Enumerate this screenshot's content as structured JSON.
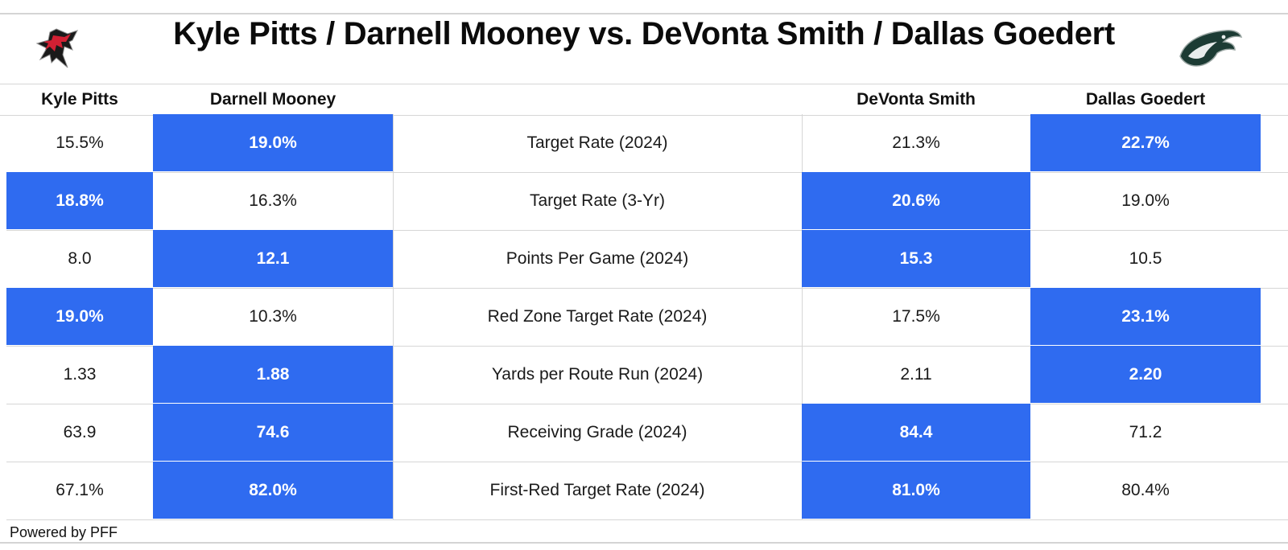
{
  "title": "Kyle Pitts / Darnell Mooney vs. DeVonta Smith / Dallas Goedert",
  "logos": {
    "left": "falcons-logo",
    "right": "eagles-logo"
  },
  "colors": {
    "highlight": "#2f6bf0",
    "highlight_text": "#ffffff",
    "grid": "#d6d6d6"
  },
  "footer": "Powered by PFF",
  "chart_data": {
    "type": "table",
    "columns": [
      "Kyle Pitts",
      "Darnell Mooney",
      "",
      "DeVonta Smith",
      "Dallas Goedert"
    ],
    "rows": [
      {
        "metric": "Target Rate (2024)",
        "values": [
          "15.5%",
          "19.0%",
          "21.3%",
          "22.7%"
        ],
        "best": [
          false,
          true,
          false,
          true
        ]
      },
      {
        "metric": "Target Rate (3-Yr)",
        "values": [
          "18.8%",
          "16.3%",
          "20.6%",
          "19.0%"
        ],
        "best": [
          true,
          false,
          true,
          false
        ]
      },
      {
        "metric": "Points Per Game (2024)",
        "values": [
          "8.0",
          "12.1",
          "15.3",
          "10.5"
        ],
        "best": [
          false,
          true,
          true,
          false
        ]
      },
      {
        "metric": "Red Zone Target Rate (2024)",
        "values": [
          "19.0%",
          "10.3%",
          "17.5%",
          "23.1%"
        ],
        "best": [
          true,
          false,
          false,
          true
        ]
      },
      {
        "metric": "Yards per Route Run (2024)",
        "values": [
          "1.33",
          "1.88",
          "2.11",
          "2.20"
        ],
        "best": [
          false,
          true,
          false,
          true
        ]
      },
      {
        "metric": "Receiving Grade (2024)",
        "values": [
          "63.9",
          "74.6",
          "84.4",
          "71.2"
        ],
        "best": [
          false,
          true,
          true,
          false
        ]
      },
      {
        "metric": "First-Red Target Rate (2024)",
        "values": [
          "67.1%",
          "82.0%",
          "81.0%",
          "80.4%"
        ],
        "best": [
          false,
          true,
          true,
          false
        ]
      }
    ]
  }
}
